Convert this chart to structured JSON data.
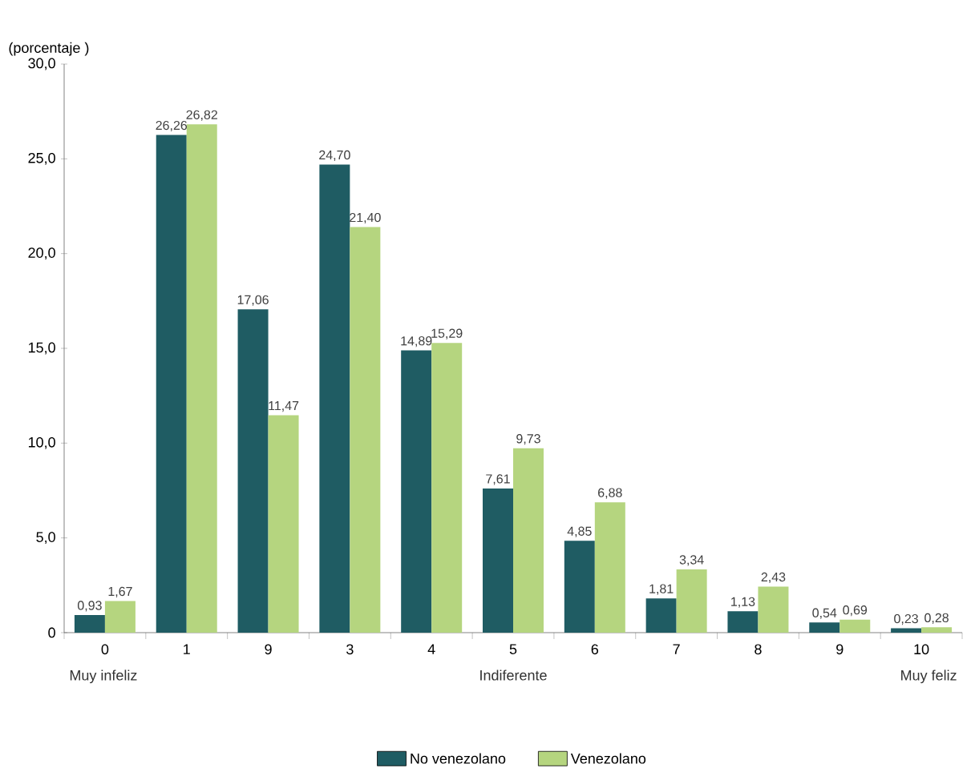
{
  "chart_data": {
    "type": "bar",
    "ylabel": "(porcentaje )",
    "categories": [
      "0",
      "1",
      "9",
      "3",
      "4",
      "5",
      "6",
      "7",
      "8",
      "9",
      "10"
    ],
    "series": [
      {
        "name": "No venezolano",
        "color": "#1f5c63",
        "values": [
          0.93,
          26.26,
          17.06,
          24.7,
          14.89,
          7.61,
          4.85,
          1.81,
          1.13,
          0.54,
          0.23
        ],
        "value_labels": [
          "0,93",
          "26,26",
          "17,06",
          "24,70",
          "14,89",
          "7,61",
          "4,85",
          "1,81",
          "1,13",
          "0,54",
          "0,23"
        ]
      },
      {
        "name": "Venezolano",
        "color": "#b5d57f",
        "values": [
          1.67,
          26.82,
          11.47,
          21.4,
          15.29,
          9.73,
          6.88,
          3.34,
          2.43,
          0.69,
          0.28
        ],
        "value_labels": [
          "1,67",
          "26,82",
          "11,47",
          "21,40",
          "15,29",
          "9,73",
          "6,88",
          "3,34",
          "2,43",
          "0,69",
          "0,28"
        ]
      }
    ],
    "ylim": [
      0,
      30
    ],
    "yticks": [
      0,
      {
        "value": 5,
        "label": "5,0"
      },
      {
        "value": 10,
        "label": "10,0"
      },
      {
        "value": 15,
        "label": "15,0"
      },
      {
        "value": 20,
        "label": "20,0"
      },
      {
        "value": 25,
        "label": "25,0"
      },
      {
        "value": 30,
        "label": "30,0"
      }
    ],
    "annotations": [
      "Muy infeliz",
      "Indiferente",
      "Muy feliz"
    ],
    "legend": "bottom",
    "grid": false
  }
}
